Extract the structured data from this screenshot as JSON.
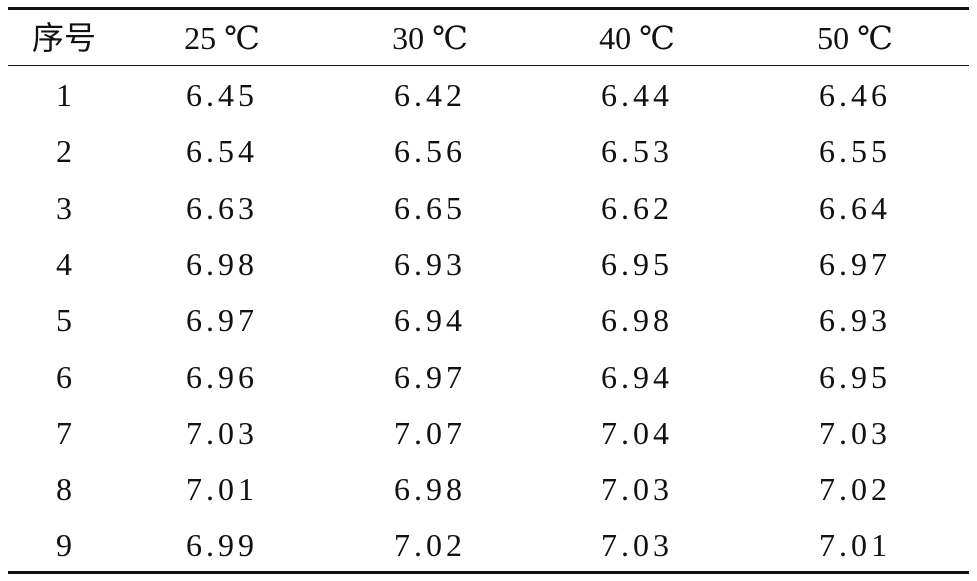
{
  "table": {
    "header": [
      "序号",
      "25 ℃",
      "30 ℃",
      "40 ℃",
      "50 ℃"
    ],
    "rows": [
      [
        "1",
        "6.45",
        "6.42",
        "6.44",
        "6.46"
      ],
      [
        "2",
        "6.54",
        "6.56",
        "6.53",
        "6.55"
      ],
      [
        "3",
        "6.63",
        "6.65",
        "6.62",
        "6.64"
      ],
      [
        "4",
        "6.98",
        "6.93",
        "6.95",
        "6.97"
      ],
      [
        "5",
        "6.97",
        "6.94",
        "6.98",
        "6.93"
      ],
      [
        "6",
        "6.96",
        "6.97",
        "6.94",
        "6.95"
      ],
      [
        "7",
        "7.03",
        "7.07",
        "7.04",
        "7.03"
      ],
      [
        "8",
        "7.01",
        "6.98",
        "7.03",
        "7.02"
      ],
      [
        "9",
        "6.99",
        "7.02",
        "7.03",
        "7.01"
      ]
    ]
  }
}
